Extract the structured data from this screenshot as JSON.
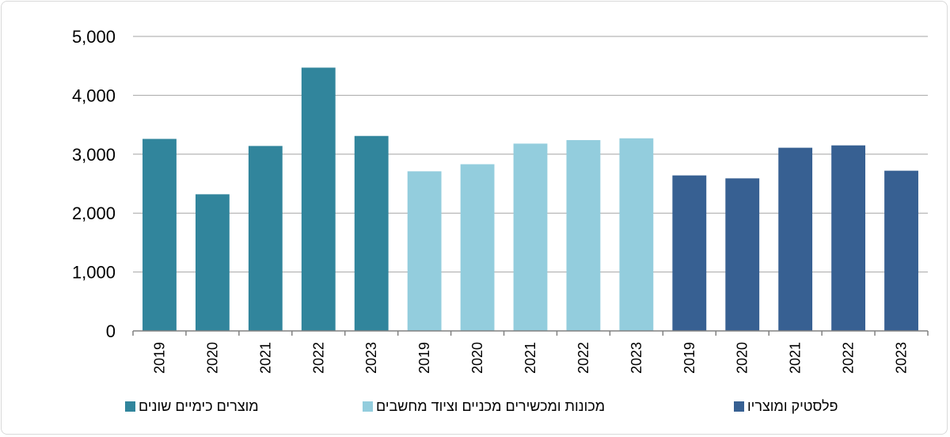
{
  "chart_data": {
    "type": "bar",
    "ylim": [
      0,
      5000
    ],
    "yticks": [
      "0",
      "1,000",
      "2,000",
      "3,000",
      "4,000",
      "5,000"
    ],
    "ytick_values": [
      0,
      1000,
      2000,
      3000,
      4000,
      5000
    ],
    "grid": true,
    "legend_position": "bottom",
    "series": [
      {
        "name": "מוצרים כימיים שונים",
        "color": "#31859c",
        "categories": [
          "2019",
          "2020",
          "2021",
          "2022",
          "2023"
        ],
        "values": [
          3260,
          2320,
          3140,
          4470,
          3310
        ]
      },
      {
        "name": "מכונות ומכשירים מכניים וציוד מחשבים",
        "color": "#93cddd",
        "categories": [
          "2019",
          "2020",
          "2021",
          "2022",
          "2023"
        ],
        "values": [
          2710,
          2830,
          3180,
          3240,
          3270
        ]
      },
      {
        "name": "פלסטיק ומוצריו",
        "color": "#376092",
        "categories": [
          "2019",
          "2020",
          "2021",
          "2022",
          "2023"
        ],
        "values": [
          2640,
          2590,
          3110,
          3150,
          2720
        ]
      }
    ]
  }
}
